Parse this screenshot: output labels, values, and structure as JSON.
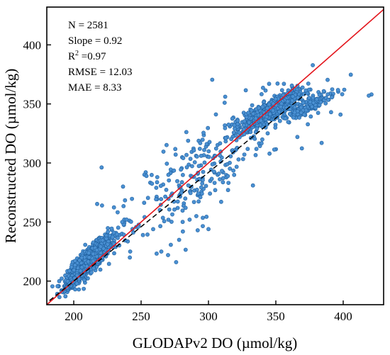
{
  "chart_data": {
    "type": "scatter",
    "xlabel": "GLODAPv2 DO (µmol/kg)",
    "ylabel": "Reconstructed DO (µmol/kg)",
    "xlim": [
      180,
      430
    ],
    "ylim": [
      180,
      432
    ],
    "xticks": [
      200,
      250,
      300,
      350,
      400
    ],
    "yticks": [
      200,
      250,
      300,
      350,
      400
    ],
    "stats": {
      "n": "N = 2581",
      "slope": "Slope = 0.92",
      "r2_prefix": "R",
      "r2_sup": "2",
      "r2_suffix": " =0.97",
      "rmse": "RMSE = 12.03",
      "mae": "MAE = 8.33"
    },
    "one_to_one_line": {
      "slope": 1,
      "intercept": 0,
      "color": "#e3141b"
    },
    "fit_line": {
      "slope": 0.92,
      "intercept": 16,
      "x_range": [
        182,
        372
      ],
      "color": "#000000",
      "style": "dashed"
    },
    "points": {
      "total": 2581,
      "color": "#4a90d2",
      "edge_color": "#1f5f9e",
      "clusters": [
        {
          "cx": 212,
          "cy": 218,
          "sx": 8,
          "sy": 9,
          "weight": 0.42
        },
        {
          "cx": 199,
          "cy": 199,
          "sx": 3,
          "sy": 3,
          "weight": 0.08
        },
        {
          "cx": 346,
          "cy": 345,
          "sx": 10,
          "sy": 7,
          "weight": 0.32
        },
        {
          "cx": 290,
          "cy": 290,
          "sx": 35,
          "sy": 35,
          "weight": 0.12
        },
        {
          "cx": 375,
          "cy": 349,
          "sx": 10,
          "sy": 6,
          "weight": 0.06
        }
      ],
      "outliers": [
        {
          "x": 421,
          "y": 358
        },
        {
          "x": 419,
          "y": 357
        },
        {
          "x": 384,
          "y": 317
        },
        {
          "x": 398,
          "y": 341
        },
        {
          "x": 391,
          "y": 343
        },
        {
          "x": 345,
          "y": 367
        },
        {
          "x": 356,
          "y": 367
        },
        {
          "x": 312,
          "y": 351
        },
        {
          "x": 254,
          "y": 289
        },
        {
          "x": 262,
          "y": 288
        },
        {
          "x": 294,
          "y": 271
        },
        {
          "x": 286,
          "y": 252
        },
        {
          "x": 280,
          "y": 275
        },
        {
          "x": 283,
          "y": 262
        },
        {
          "x": 292,
          "y": 243
        },
        {
          "x": 333,
          "y": 281
        },
        {
          "x": 366,
          "y": 322
        },
        {
          "x": 358,
          "y": 347
        },
        {
          "x": 265,
          "y": 225
        },
        {
          "x": 270,
          "y": 222
        },
        {
          "x": 276,
          "y": 216
        },
        {
          "x": 248,
          "y": 246
        },
        {
          "x": 281,
          "y": 242
        },
        {
          "x": 291,
          "y": 255
        },
        {
          "x": 236,
          "y": 250
        },
        {
          "x": 300,
          "y": 244
        }
      ]
    }
  }
}
